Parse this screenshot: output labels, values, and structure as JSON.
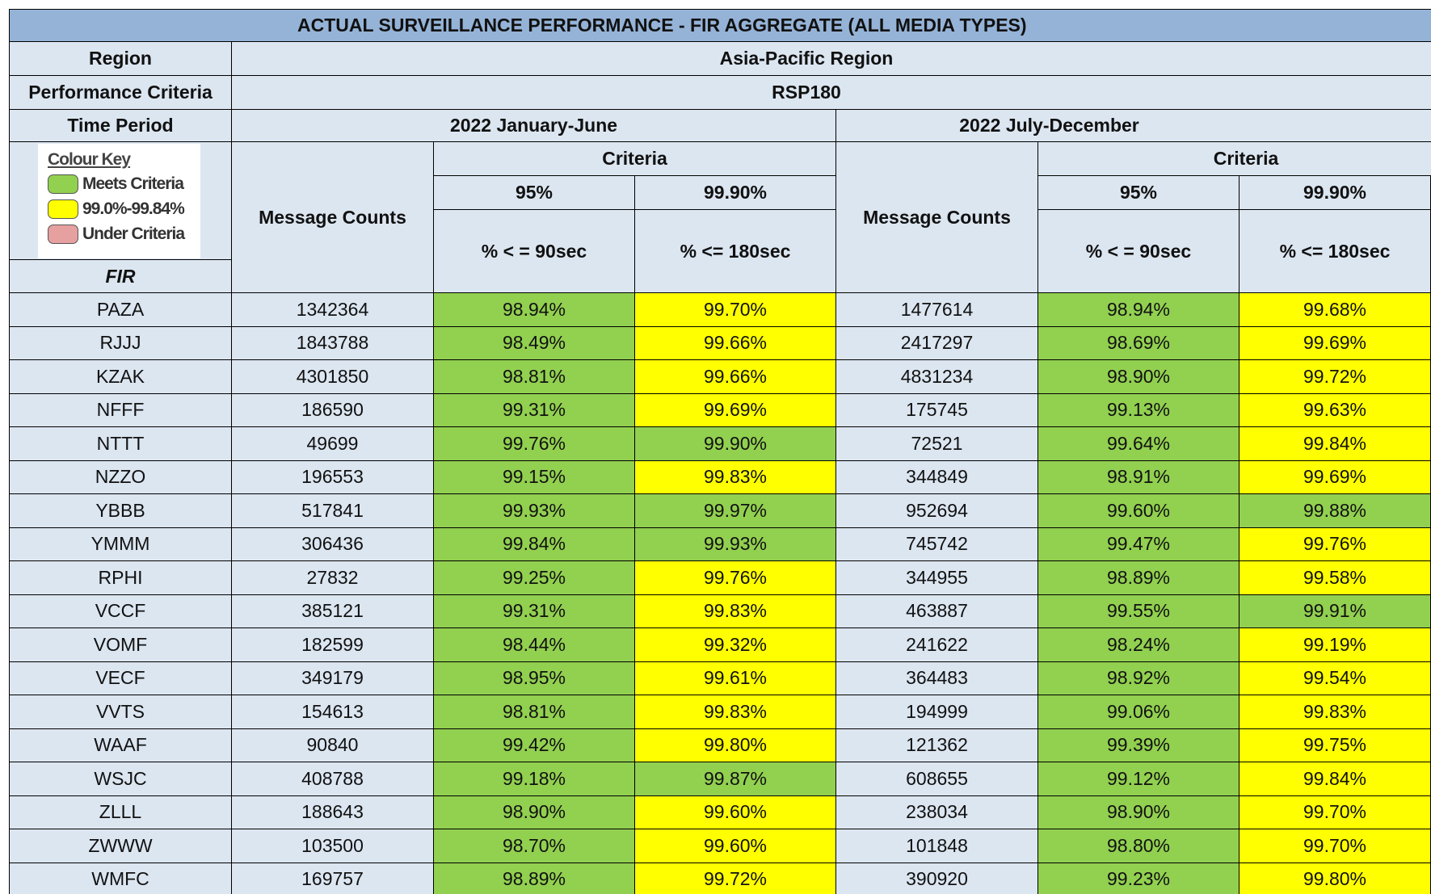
{
  "table": {
    "title": "ACTUAL SURVEILLANCE PERFORMANCE - FIR AGGREGATE (ALL MEDIA TYPES)",
    "region_label": "Region",
    "region": "Asia-Pacific Region",
    "criteria_label": "Performance Criteria",
    "criteria": "RSP180",
    "period_label": "Time Period",
    "periods": [
      {
        "name": "2022 January-June",
        "count_header": "Message Counts",
        "criteria_header": "Criteria",
        "targets": [
          "95%",
          "99.90%"
        ],
        "measures": [
          "% < = 90sec",
          "% <= 180sec"
        ]
      },
      {
        "name": "2022 July-December",
        "count_header": "Message Counts",
        "criteria_header": "Criteria",
        "targets": [
          "95%",
          "99.90%"
        ],
        "measures": [
          "% < = 90sec",
          "% <= 180sec"
        ]
      }
    ],
    "colour_key": {
      "title": "Colour Key",
      "items": [
        {
          "label": "Meets Criteria",
          "color": "#92d050"
        },
        {
          "label": "99.0%-99.84%",
          "color": "#ffff00"
        },
        {
          "label": "Under Criteria",
          "color": "#e6a0a0"
        }
      ]
    },
    "fir_header": "FIR",
    "rows": [
      {
        "fir": "PAZA",
        "cells": [
          1342364,
          {
            "text": "98.94%",
            "color": "#92d050"
          },
          {
            "text": "99.70%",
            "color": "#ffff00"
          },
          1477614,
          {
            "text": "98.94%",
            "color": "#92d050"
          },
          {
            "text": "99.68%",
            "color": "#ffff00"
          }
        ]
      },
      {
        "fir": "RJJJ",
        "cells": [
          1843788,
          {
            "text": "98.49%",
            "color": "#92d050"
          },
          {
            "text": "99.66%",
            "color": "#ffff00"
          },
          2417297,
          {
            "text": "98.69%",
            "color": "#92d050"
          },
          {
            "text": "99.69%",
            "color": "#ffff00"
          }
        ]
      },
      {
        "fir": "KZAK",
        "cells": [
          4301850,
          {
            "text": "98.81%",
            "color": "#92d050"
          },
          {
            "text": "99.66%",
            "color": "#ffff00"
          },
          4831234,
          {
            "text": "98.90%",
            "color": "#92d050"
          },
          {
            "text": "99.72%",
            "color": "#ffff00"
          }
        ]
      },
      {
        "fir": "NFFF",
        "cells": [
          186590,
          {
            "text": "99.31%",
            "color": "#92d050"
          },
          {
            "text": "99.69%",
            "color": "#ffff00"
          },
          175745,
          {
            "text": "99.13%",
            "color": "#92d050"
          },
          {
            "text": "99.63%",
            "color": "#ffff00"
          }
        ]
      },
      {
        "fir": "NTTT",
        "cells": [
          49699,
          {
            "text": "99.76%",
            "color": "#92d050"
          },
          {
            "text": "99.90%",
            "color": "#92d050"
          },
          72521,
          {
            "text": "99.64%",
            "color": "#92d050"
          },
          {
            "text": "99.84%",
            "color": "#ffff00"
          }
        ]
      },
      {
        "fir": "NZZO",
        "cells": [
          196553,
          {
            "text": "99.15%",
            "color": "#92d050"
          },
          {
            "text": "99.83%",
            "color": "#ffff00"
          },
          344849,
          {
            "text": "98.91%",
            "color": "#92d050"
          },
          {
            "text": "99.69%",
            "color": "#ffff00"
          }
        ]
      },
      {
        "fir": "YBBB",
        "cells": [
          517841,
          {
            "text": "99.93%",
            "color": "#92d050"
          },
          {
            "text": "99.97%",
            "color": "#92d050"
          },
          952694,
          {
            "text": "99.60%",
            "color": "#92d050"
          },
          {
            "text": "99.88%",
            "color": "#92d050"
          }
        ]
      },
      {
        "fir": "YMMM",
        "cells": [
          306436,
          {
            "text": "99.84%",
            "color": "#92d050"
          },
          {
            "text": "99.93%",
            "color": "#92d050"
          },
          745742,
          {
            "text": "99.47%",
            "color": "#92d050"
          },
          {
            "text": "99.76%",
            "color": "#ffff00"
          }
        ]
      },
      {
        "fir": "RPHI",
        "cells": [
          27832,
          {
            "text": "99.25%",
            "color": "#92d050"
          },
          {
            "text": "99.76%",
            "color": "#ffff00"
          },
          344955,
          {
            "text": "98.89%",
            "color": "#92d050"
          },
          {
            "text": "99.58%",
            "color": "#ffff00"
          }
        ]
      },
      {
        "fir": "VCCF",
        "cells": [
          385121,
          {
            "text": "99.31%",
            "color": "#92d050"
          },
          {
            "text": "99.83%",
            "color": "#ffff00"
          },
          463887,
          {
            "text": "99.55%",
            "color": "#92d050"
          },
          {
            "text": "99.91%",
            "color": "#92d050"
          }
        ]
      },
      {
        "fir": "VOMF",
        "cells": [
          182599,
          {
            "text": "98.44%",
            "color": "#92d050"
          },
          {
            "text": "99.32%",
            "color": "#ffff00"
          },
          241622,
          {
            "text": "98.24%",
            "color": "#92d050"
          },
          {
            "text": "99.19%",
            "color": "#ffff00"
          }
        ]
      },
      {
        "fir": "VECF",
        "cells": [
          349179,
          {
            "text": "98.95%",
            "color": "#92d050"
          },
          {
            "text": "99.61%",
            "color": "#ffff00"
          },
          364483,
          {
            "text": "98.92%",
            "color": "#92d050"
          },
          {
            "text": "99.54%",
            "color": "#ffff00"
          }
        ]
      },
      {
        "fir": "VVTS",
        "cells": [
          154613,
          {
            "text": "98.81%",
            "color": "#92d050"
          },
          {
            "text": "99.83%",
            "color": "#ffff00"
          },
          194999,
          {
            "text": "99.06%",
            "color": "#92d050"
          },
          {
            "text": "99.83%",
            "color": "#ffff00"
          }
        ]
      },
      {
        "fir": "WAAF",
        "cells": [
          90840,
          {
            "text": "99.42%",
            "color": "#92d050"
          },
          {
            "text": "99.80%",
            "color": "#ffff00"
          },
          121362,
          {
            "text": "99.39%",
            "color": "#92d050"
          },
          {
            "text": "99.75%",
            "color": "#ffff00"
          }
        ]
      },
      {
        "fir": "WSJC",
        "cells": [
          408788,
          {
            "text": "99.18%",
            "color": "#92d050"
          },
          {
            "text": "99.87%",
            "color": "#92d050"
          },
          608655,
          {
            "text": "99.12%",
            "color": "#92d050"
          },
          {
            "text": "99.84%",
            "color": "#ffff00"
          }
        ]
      },
      {
        "fir": "ZLLL",
        "cells": [
          188643,
          {
            "text": "98.90%",
            "color": "#92d050"
          },
          {
            "text": "99.60%",
            "color": "#ffff00"
          },
          238034,
          {
            "text": "98.90%",
            "color": "#92d050"
          },
          {
            "text": "99.70%",
            "color": "#ffff00"
          }
        ]
      },
      {
        "fir": "ZWWW",
        "cells": [
          103500,
          {
            "text": "98.70%",
            "color": "#92d050"
          },
          {
            "text": "99.60%",
            "color": "#ffff00"
          },
          101848,
          {
            "text": "98.80%",
            "color": "#92d050"
          },
          {
            "text": "99.70%",
            "color": "#ffff00"
          }
        ]
      },
      {
        "fir": "WMFC",
        "cells": [
          169757,
          {
            "text": "98.89%",
            "color": "#92d050"
          },
          {
            "text": "99.72%",
            "color": "#ffff00"
          },
          390920,
          {
            "text": "99.23%",
            "color": "#92d050"
          },
          {
            "text": "99.80%",
            "color": "#ffff00"
          }
        ]
      }
    ]
  }
}
